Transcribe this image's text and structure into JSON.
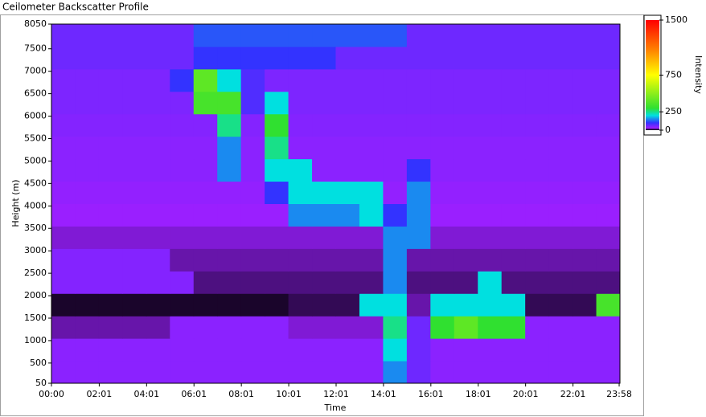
{
  "chart_data": {
    "type": "heatmap",
    "title": "Ceilometer Backscatter Profile",
    "x_label": "Time",
    "y_label": "Height (m)",
    "colorbar_label": "Intensity",
    "xlim": [
      0,
      1440
    ],
    "xticks": [
      {
        "value": 0,
        "label": "00:00"
      },
      {
        "value": 121,
        "label": "02:01"
      },
      {
        "value": 241,
        "label": "04:01"
      },
      {
        "value": 361,
        "label": "06:01"
      },
      {
        "value": 481,
        "label": "08:01"
      },
      {
        "value": 601,
        "label": "10:01"
      },
      {
        "value": 721,
        "label": "12:01"
      },
      {
        "value": 841,
        "label": "14:01"
      },
      {
        "value": 961,
        "label": "16:01"
      },
      {
        "value": 1081,
        "label": "18:01"
      },
      {
        "value": 1201,
        "label": "20:01"
      },
      {
        "value": 1321,
        "label": "22:01"
      },
      {
        "value": 1438,
        "label": "23:58"
      }
    ],
    "ylim": [
      50,
      8050
    ],
    "yticks": [
      50,
      500,
      1000,
      1500,
      2000,
      2500,
      3000,
      3500,
      4000,
      4500,
      5000,
      5500,
      6000,
      6500,
      7000,
      7500,
      8050
    ],
    "clim": [
      0,
      1500
    ],
    "cticks": [
      0,
      250,
      750,
      1500
    ],
    "colorscale": [
      [
        0,
        "#000000"
      ],
      [
        30,
        "#9a1fff"
      ],
      [
        100,
        "#3333ff"
      ],
      [
        200,
        "#00e0e0"
      ],
      [
        300,
        "#30e030"
      ],
      [
        750,
        "#ffff00"
      ],
      [
        1100,
        "#ff8000"
      ],
      [
        1500,
        "#ff0000"
      ]
    ],
    "z": [
      [
        40,
        40,
        40,
        40,
        40,
        40,
        40,
        40,
        40,
        40,
        40,
        40,
        40,
        40,
        150,
        60,
        40,
        40,
        40,
        40,
        40,
        40,
        40,
        40
      ],
      [
        40,
        40,
        40,
        40,
        40,
        40,
        40,
        40,
        40,
        40,
        40,
        40,
        40,
        40,
        200,
        60,
        40,
        40,
        40,
        40,
        40,
        40,
        40,
        40
      ],
      [
        20,
        20,
        20,
        20,
        20,
        40,
        40,
        40,
        40,
        40,
        25,
        25,
        25,
        25,
        250,
        60,
        300,
        400,
        300,
        300,
        40,
        40,
        40,
        40
      ],
      [
        5,
        5,
        5,
        5,
        5,
        5,
        5,
        5,
        5,
        5,
        10,
        10,
        10,
        200,
        200,
        20,
        200,
        200,
        200,
        200,
        10,
        10,
        10,
        350
      ],
      [
        45,
        45,
        45,
        45,
        45,
        45,
        15,
        15,
        15,
        15,
        15,
        15,
        15,
        15,
        150,
        15,
        15,
        15,
        200,
        15,
        15,
        15,
        15,
        15
      ],
      [
        45,
        45,
        45,
        45,
        45,
        20,
        20,
        20,
        20,
        20,
        20,
        20,
        20,
        20,
        150,
        20,
        20,
        20,
        20,
        20,
        20,
        20,
        20,
        20
      ],
      [
        25,
        25,
        25,
        25,
        25,
        25,
        25,
        25,
        25,
        25,
        25,
        25,
        25,
        25,
        150,
        150,
        25,
        25,
        25,
        25,
        25,
        25,
        25,
        25
      ],
      [
        30,
        30,
        30,
        30,
        30,
        30,
        30,
        30,
        30,
        30,
        150,
        150,
        150,
        200,
        100,
        150,
        30,
        30,
        30,
        30,
        30,
        30,
        30,
        30
      ],
      [
        35,
        35,
        35,
        35,
        35,
        35,
        35,
        35,
        35,
        100,
        200,
        200,
        200,
        200,
        35,
        150,
        35,
        35,
        35,
        35,
        35,
        35,
        35,
        35
      ],
      [
        40,
        40,
        40,
        40,
        40,
        40,
        40,
        150,
        40,
        200,
        200,
        40,
        40,
        40,
        40,
        100,
        40,
        40,
        40,
        40,
        40,
        40,
        40,
        40
      ],
      [
        40,
        40,
        40,
        40,
        40,
        40,
        40,
        150,
        40,
        250,
        40,
        40,
        40,
        40,
        40,
        40,
        40,
        40,
        40,
        40,
        40,
        40,
        40,
        40
      ],
      [
        45,
        45,
        45,
        45,
        45,
        45,
        45,
        250,
        45,
        300,
        45,
        45,
        45,
        45,
        45,
        45,
        45,
        45,
        45,
        45,
        45,
        45,
        45,
        45
      ],
      [
        50,
        50,
        50,
        50,
        50,
        50,
        350,
        350,
        80,
        200,
        50,
        50,
        50,
        50,
        50,
        50,
        50,
        50,
        50,
        50,
        50,
        50,
        50,
        50
      ],
      [
        50,
        50,
        50,
        50,
        50,
        100,
        400,
        200,
        80,
        50,
        50,
        50,
        50,
        50,
        50,
        50,
        50,
        50,
        50,
        50,
        50,
        50,
        50,
        50
      ],
      [
        60,
        60,
        60,
        60,
        60,
        60,
        100,
        100,
        100,
        100,
        100,
        100,
        60,
        60,
        60,
        60,
        60,
        60,
        60,
        60,
        60,
        60,
        60,
        60
      ],
      [
        60,
        60,
        60,
        60,
        60,
        60,
        120,
        120,
        120,
        120,
        120,
        120,
        120,
        120,
        120,
        60,
        60,
        60,
        60,
        60,
        60,
        60,
        60,
        60
      ]
    ]
  }
}
